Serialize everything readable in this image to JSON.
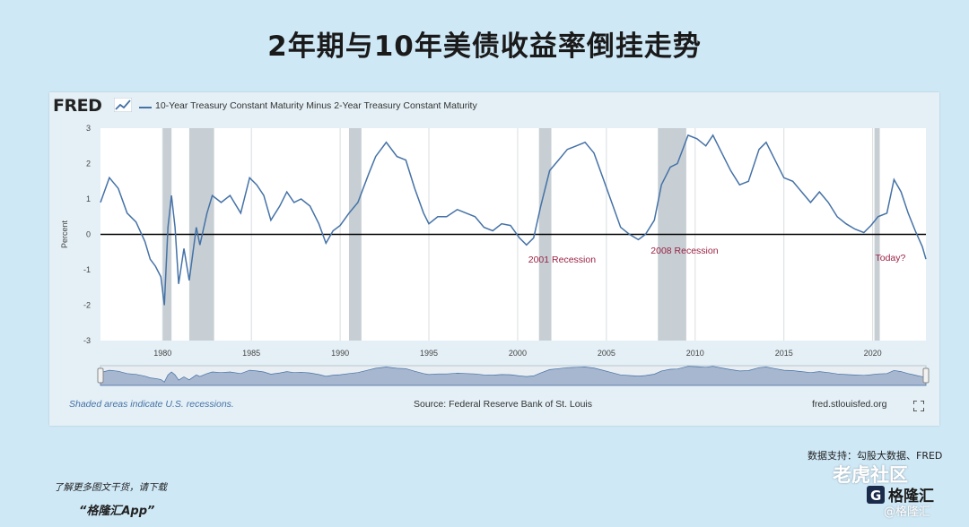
{
  "page": {
    "title": "2年期与10年美债收益率倒挂走势",
    "data_support": "数据支持：勾股大数据、FRED",
    "promo_line1": "了解更多图文干货，请下载",
    "promo_line2": "“格隆汇App”",
    "watermark_tiger": "老虎社区",
    "watermark_gelonghui": "格隆汇",
    "watermark_tiger_sub": "@格隆汇"
  },
  "fred": {
    "logo_text": "FRED",
    "footer_note": "Shaded areas indicate U.S. recessions.",
    "footer_source": "Source: Federal Reserve Bank of St. Louis",
    "footer_url": "fred.stlouisfed.org"
  },
  "colors": {
    "line": "#4572a7",
    "recession": "#c7cfd4",
    "zero_line": "#000000",
    "annotation": "#9b2244",
    "background": "#cfe8f6"
  },
  "chart_data": {
    "type": "line",
    "series": [
      {
        "name": "10-Year Treasury Constant Maturity Minus 2-Year Treasury Constant Maturity",
        "points": [
          [
            1976.5,
            0.9
          ],
          [
            1977.0,
            1.6
          ],
          [
            1977.5,
            1.3
          ],
          [
            1978.0,
            0.6
          ],
          [
            1978.5,
            0.35
          ],
          [
            1979.0,
            -0.2
          ],
          [
            1979.3,
            -0.7
          ],
          [
            1979.6,
            -0.9
          ],
          [
            1979.9,
            -1.2
          ],
          [
            1980.1,
            -2.0
          ],
          [
            1980.3,
            0.2
          ],
          [
            1980.5,
            1.1
          ],
          [
            1980.7,
            0.2
          ],
          [
            1980.9,
            -1.4
          ],
          [
            1981.2,
            -0.4
          ],
          [
            1981.5,
            -1.3
          ],
          [
            1981.9,
            0.2
          ],
          [
            1982.1,
            -0.3
          ],
          [
            1982.5,
            0.6
          ],
          [
            1982.8,
            1.1
          ],
          [
            1983.3,
            0.9
          ],
          [
            1983.8,
            1.1
          ],
          [
            1984.4,
            0.6
          ],
          [
            1984.9,
            1.6
          ],
          [
            1985.3,
            1.4
          ],
          [
            1985.7,
            1.1
          ],
          [
            1986.1,
            0.4
          ],
          [
            1986.6,
            0.8
          ],
          [
            1987.0,
            1.2
          ],
          [
            1987.4,
            0.9
          ],
          [
            1987.8,
            1.0
          ],
          [
            1988.3,
            0.8
          ],
          [
            1988.8,
            0.3
          ],
          [
            1989.2,
            -0.25
          ],
          [
            1989.6,
            0.1
          ],
          [
            1990.0,
            0.25
          ],
          [
            1990.5,
            0.6
          ],
          [
            1991.0,
            0.9
          ],
          [
            1991.6,
            1.7
          ],
          [
            1992.0,
            2.2
          ],
          [
            1992.6,
            2.6
          ],
          [
            1993.2,
            2.2
          ],
          [
            1993.7,
            2.1
          ],
          [
            1994.2,
            1.3
          ],
          [
            1994.7,
            0.6
          ],
          [
            1995.0,
            0.3
          ],
          [
            1995.5,
            0.5
          ],
          [
            1996.0,
            0.5
          ],
          [
            1996.6,
            0.7
          ],
          [
            1997.1,
            0.6
          ],
          [
            1997.6,
            0.5
          ],
          [
            1998.1,
            0.2
          ],
          [
            1998.6,
            0.1
          ],
          [
            1999.1,
            0.3
          ],
          [
            1999.6,
            0.25
          ],
          [
            2000.1,
            -0.1
          ],
          [
            2000.5,
            -0.3
          ],
          [
            2000.9,
            -0.1
          ],
          [
            2001.3,
            0.8
          ],
          [
            2001.8,
            1.8
          ],
          [
            2002.3,
            2.1
          ],
          [
            2002.8,
            2.4
          ],
          [
            2003.3,
            2.5
          ],
          [
            2003.8,
            2.6
          ],
          [
            2004.3,
            2.3
          ],
          [
            2004.8,
            1.6
          ],
          [
            2005.3,
            0.9
          ],
          [
            2005.8,
            0.2
          ],
          [
            2006.3,
            0.0
          ],
          [
            2006.8,
            -0.15
          ],
          [
            2007.2,
            0.0
          ],
          [
            2007.7,
            0.4
          ],
          [
            2008.1,
            1.4
          ],
          [
            2008.6,
            1.9
          ],
          [
            2009.0,
            2.0
          ],
          [
            2009.6,
            2.8
          ],
          [
            2010.1,
            2.7
          ],
          [
            2010.6,
            2.5
          ],
          [
            2011.0,
            2.8
          ],
          [
            2011.5,
            2.3
          ],
          [
            2012.0,
            1.8
          ],
          [
            2012.5,
            1.4
          ],
          [
            2013.0,
            1.5
          ],
          [
            2013.6,
            2.4
          ],
          [
            2014.0,
            2.6
          ],
          [
            2014.5,
            2.1
          ],
          [
            2015.0,
            1.6
          ],
          [
            2015.5,
            1.5
          ],
          [
            2016.0,
            1.2
          ],
          [
            2016.5,
            0.9
          ],
          [
            2017.0,
            1.2
          ],
          [
            2017.5,
            0.9
          ],
          [
            2018.0,
            0.5
          ],
          [
            2018.5,
            0.3
          ],
          [
            2019.0,
            0.15
          ],
          [
            2019.5,
            0.05
          ],
          [
            2019.9,
            0.25
          ],
          [
            2020.3,
            0.5
          ],
          [
            2020.8,
            0.6
          ],
          [
            2021.2,
            1.55
          ],
          [
            2021.6,
            1.2
          ],
          [
            2022.0,
            0.6
          ],
          [
            2022.4,
            0.1
          ],
          [
            2022.8,
            -0.35
          ],
          [
            2023.0,
            -0.7
          ]
        ]
      }
    ],
    "recessions": [
      [
        1980.0,
        1980.5
      ],
      [
        1981.5,
        1982.9
      ],
      [
        1990.5,
        1991.2
      ],
      [
        2001.2,
        2001.9
      ],
      [
        2007.9,
        2009.5
      ],
      [
        2020.1,
        2020.4
      ]
    ],
    "xlim": [
      1976.5,
      2023.0
    ],
    "ylim": [
      -3,
      3
    ],
    "x_ticks": [
      1980,
      1985,
      1990,
      1995,
      2000,
      2005,
      2010,
      2015,
      2020
    ],
    "y_ticks": [
      3,
      2,
      1,
      0,
      -1,
      -2,
      -3
    ],
    "ylabel": "Percent",
    "annotations": [
      {
        "text": "2001 Recession",
        "x": 2002.5,
        "y": -0.8
      },
      {
        "text": "2008 Recession",
        "x": 2009.4,
        "y": -0.55
      },
      {
        "text": "Today?",
        "x": 2021.0,
        "y": -0.75
      }
    ],
    "grid": "vertical",
    "legend_placement": "top-left"
  }
}
